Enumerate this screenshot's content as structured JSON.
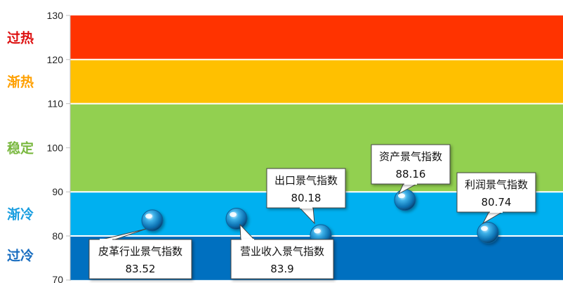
{
  "chart_data": {
    "type": "scatter",
    "title": "",
    "xlabel": "",
    "ylabel": "",
    "ylim": [
      70,
      130
    ],
    "yticks": [
      70,
      80,
      90,
      100,
      110,
      120,
      130
    ],
    "grid": false,
    "legend": "none",
    "bands": [
      {
        "label": "过热",
        "from": 120,
        "to": 130,
        "color": "#ff3300",
        "label_color": "#dd1111"
      },
      {
        "label": "渐热",
        "from": 110,
        "to": 120,
        "color": "#ffc000",
        "label_color": "#ffa000"
      },
      {
        "label": "稳定",
        "from": 90,
        "to": 110,
        "color": "#92d050",
        "label_color": "#7ab840"
      },
      {
        "label": "渐冷",
        "from": 80,
        "to": 90,
        "color": "#00b0f0",
        "label_color": "#1a9ee0"
      },
      {
        "label": "过冷",
        "from": 70,
        "to": 80,
        "color": "#0070c0",
        "label_color": "#1a6ec0"
      }
    ],
    "series": [
      {
        "points": [
          {
            "label": "皮革行业景气指数",
            "value": 83.52,
            "value_text": "83.52"
          },
          {
            "label": "营业收入景气指数",
            "value": 83.9,
            "value_text": "83.9"
          },
          {
            "label": "出口景气指数",
            "value": 80.18,
            "value_text": "80.18"
          },
          {
            "label": "资产景气指数",
            "value": 88.16,
            "value_text": "88.16"
          },
          {
            "label": "利润景气指数",
            "value": 80.74,
            "value_text": "80.74"
          }
        ]
      }
    ]
  }
}
